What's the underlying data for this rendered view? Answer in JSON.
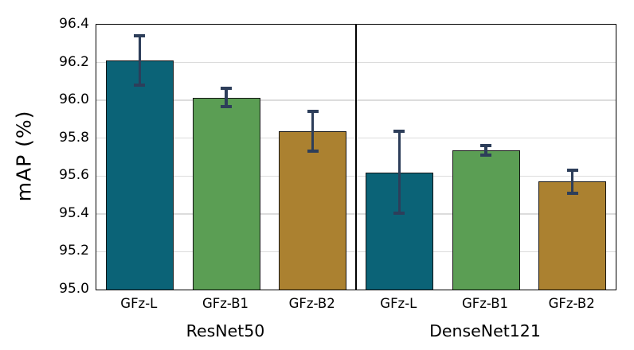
{
  "chart_data": {
    "type": "bar",
    "title": "",
    "xlabel": "",
    "ylabel": "mAP (%)",
    "ylim": [
      95.0,
      96.4
    ],
    "yticks": [
      95.0,
      95.2,
      95.4,
      95.6,
      95.8,
      96.0,
      96.2,
      96.4
    ],
    "ytick_labels": [
      "95.0",
      "95.2",
      "95.4",
      "95.6",
      "95.8",
      "96.0",
      "96.2",
      "96.4"
    ],
    "grid": "horizontal",
    "legend": "none",
    "group_separator": true,
    "groups": [
      {
        "label": "ResNet50",
        "bars": [
          {
            "category": "GFz-L",
            "value": 96.21,
            "err_plus": 0.13,
            "err_minus": 0.13,
            "color": "#0b6377"
          },
          {
            "category": "GFz-B1",
            "value": 96.015,
            "err_plus": 0.05,
            "err_minus": 0.05,
            "color": "#5b9e54"
          },
          {
            "category": "GFz-B2",
            "value": 95.835,
            "err_plus": 0.105,
            "err_minus": 0.105,
            "color": "#ab8130"
          }
        ]
      },
      {
        "label": "DenseNet121",
        "bars": [
          {
            "category": "GFz-L",
            "value": 95.62,
            "err_plus": 0.215,
            "err_minus": 0.215,
            "color": "#0b6377"
          },
          {
            "category": "GFz-B1",
            "value": 95.735,
            "err_plus": 0.025,
            "err_minus": 0.025,
            "color": "#5b9e54"
          },
          {
            "category": "GFz-B2",
            "value": 95.57,
            "err_plus": 0.06,
            "err_minus": 0.06,
            "color": "#ab8130"
          }
        ]
      }
    ],
    "colors": {
      "bar_teal": "#0b6377",
      "bar_green": "#5b9e54",
      "bar_gold": "#ab8130",
      "bar_edge": "#141414",
      "error_bar": "#2d3e5a",
      "gridline": "#dcdcdc",
      "axis": "#000000",
      "background": "#ffffff"
    },
    "errorbar_style": {
      "line_width": 3.5,
      "cap_width": 14,
      "cap_thickness": 4
    }
  }
}
